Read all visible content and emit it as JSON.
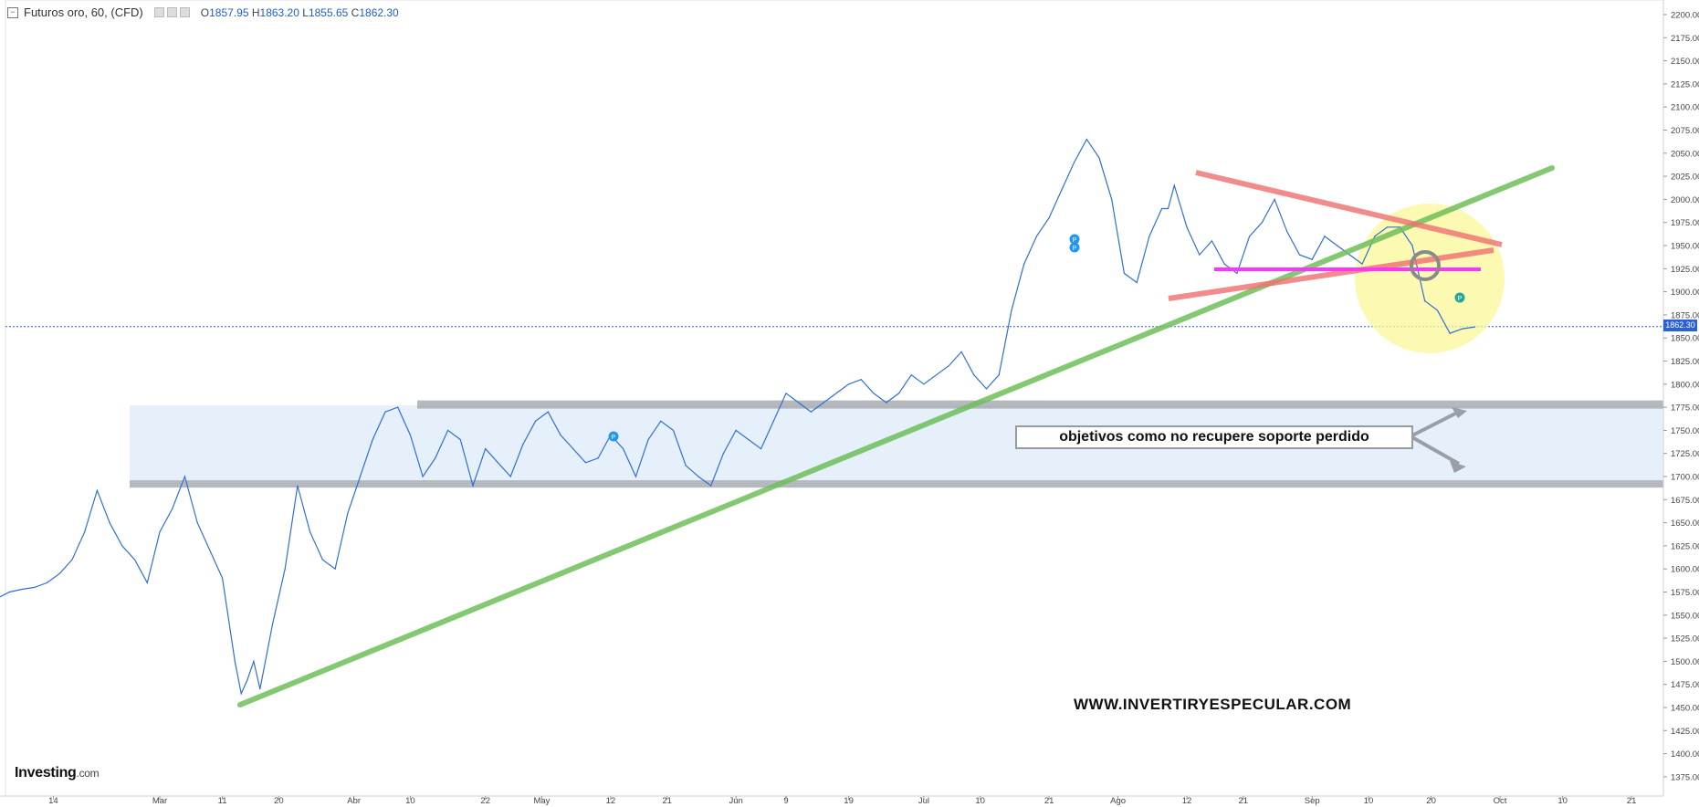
{
  "header": {
    "title": "Futuros oro, 60, (CFD)",
    "open_label": "O",
    "open": "1857.95",
    "high_label": "H",
    "high": "1863.20",
    "low_label": "L",
    "low": "1855.65",
    "close_label": "C",
    "close": "1862.30"
  },
  "logo": {
    "brand": "Investing",
    "domain": ".com"
  },
  "annotation_text": "objetivos como no recupere soporte perdido",
  "watermark": "WWW.INVERTIRYESPECULAR.COM",
  "last_price_tag": "1862.30",
  "colors": {
    "price_line": "#2f6fd6",
    "trendline": "#6fbf5a",
    "triangle_upper": "#f07070",
    "triangle_lower": "#f07070",
    "support_magenta": "#ff33ff",
    "zone_fill": "#e6f0fb",
    "zone_border": "#a9acb2",
    "highlight_circle": "#fbf79a",
    "marker": "#2196f3",
    "marker_teal": "#26a69a"
  },
  "chart_data": {
    "type": "line",
    "title": "Futuros oro, 60, (CFD)",
    "xlabel": "",
    "ylabel": "",
    "ylim": [
      1350,
      2212.5
    ],
    "y_ticks": [
      "2200.00",
      "2175.00",
      "2150.00",
      "2125.00",
      "2100.00",
      "2075.00",
      "2050.00",
      "2025.00",
      "2000.00",
      "1975.00",
      "1950.00",
      "1925.00",
      "1900.00",
      "1875.00",
      "1850.00",
      "1825.00",
      "1800.00",
      "1775.00",
      "1750.00",
      "1725.00",
      "1700.00",
      "1675.00",
      "1650.00",
      "1625.00",
      "1600.00",
      "1575.00",
      "1550.00",
      "1525.00",
      "1500.00",
      "1475.00",
      "1450.00",
      "1425.00",
      "1400.00",
      "1375.00"
    ],
    "x_ticks": [
      "14",
      "Mar",
      "11",
      "20",
      "Abr",
      "10",
      "22",
      "May",
      "12",
      "21",
      "Jun",
      "9",
      "19",
      "Jul",
      "10",
      "21",
      "Ago",
      "12",
      "21",
      "Sep",
      "10",
      "20",
      "Oct",
      "10",
      "21"
    ],
    "x_tick_days": [
      -17,
      0,
      10,
      19,
      31,
      40,
      52,
      61,
      72,
      81,
      92,
      100,
      110,
      122,
      131,
      142,
      153,
      164,
      173,
      184,
      193,
      203,
      214,
      224,
      235
    ],
    "series": [
      {
        "x": [
          -26,
          -24,
          -22,
          -20,
          -18,
          -16,
          -14,
          -12,
          -10,
          -8,
          -6,
          -4,
          -2,
          0,
          2,
          4,
          6,
          8,
          10,
          12,
          13,
          14,
          15,
          16,
          18,
          20,
          22,
          24,
          26,
          28,
          30,
          32,
          34,
          36,
          38,
          40,
          42,
          44,
          46,
          48,
          50,
          52,
          54,
          56,
          58,
          60,
          62,
          64,
          66,
          68,
          70,
          72,
          74,
          76,
          78,
          80,
          82,
          84,
          86,
          88,
          90,
          92,
          94,
          96,
          98,
          100,
          102,
          104,
          106,
          108,
          110,
          112,
          114,
          116,
          118,
          120,
          122,
          124,
          126,
          128,
          130,
          132,
          134,
          136,
          138,
          140,
          142,
          144,
          146,
          148,
          150,
          152,
          154,
          156,
          158,
          160,
          161,
          162,
          164,
          166,
          168,
          170,
          172,
          174,
          176,
          178,
          180,
          182,
          184,
          186,
          188,
          190,
          192,
          194,
          196,
          198,
          200,
          202,
          204,
          206,
          208,
          210
        ],
        "values": [
          1568,
          1575,
          1578,
          1580,
          1585,
          1595,
          1610,
          1640,
          1685,
          1650,
          1625,
          1610,
          1585,
          1640,
          1665,
          1700,
          1650,
          1620,
          1590,
          1500,
          1465,
          1480,
          1500,
          1470,
          1540,
          1600,
          1690,
          1640,
          1610,
          1600,
          1660,
          1700,
          1740,
          1770,
          1775,
          1745,
          1700,
          1720,
          1750,
          1740,
          1690,
          1730,
          1715,
          1700,
          1735,
          1760,
          1770,
          1745,
          1730,
          1715,
          1720,
          1745,
          1730,
          1700,
          1740,
          1760,
          1750,
          1712,
          1700,
          1690,
          1725,
          1750,
          1740,
          1730,
          1760,
          1790,
          1780,
          1770,
          1780,
          1790,
          1800,
          1805,
          1790,
          1780,
          1790,
          1810,
          1800,
          1810,
          1820,
          1835,
          1810,
          1795,
          1810,
          1880,
          1930,
          1960,
          1980,
          2010,
          2040,
          2065,
          2045,
          2000,
          1920,
          1910,
          1960,
          1990,
          1990,
          2015,
          1970,
          1940,
          1955,
          1930,
          1920,
          1960,
          1975,
          2000,
          1965,
          1940,
          1935,
          1960,
          1950,
          1940,
          1930,
          1960,
          1970,
          1970,
          1950,
          1890,
          1880,
          1855,
          1860,
          1862
        ]
      }
    ]
  }
}
